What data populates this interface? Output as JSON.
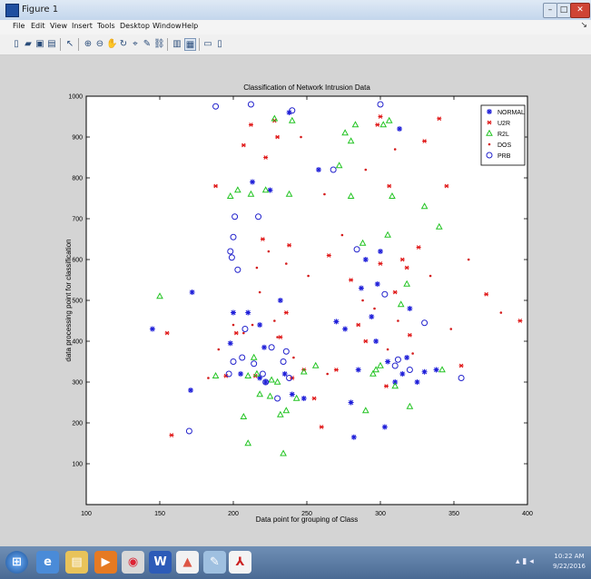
{
  "window": {
    "title": "Figure 1"
  },
  "menu": [
    "File",
    "Edit",
    "View",
    "Insert",
    "Tools",
    "Desktop",
    "Window",
    "Help"
  ],
  "toolbar_icons": [
    "new-figure-icon",
    "open-icon",
    "save-icon",
    "print-icon",
    "pointer-icon",
    "zoom-in-icon",
    "zoom-out-icon",
    "pan-icon",
    "rotate-icon",
    "data-cursor-icon",
    "brush-icon",
    "link-icon",
    "colorbar-icon",
    "legend-icon",
    "hide-tools-icon",
    "show-tools-icon"
  ],
  "chart_data": {
    "type": "scatter",
    "title": "Classification of Network Intrusion Data",
    "xlabel": "Data point for grouping of Class",
    "ylabel": "data processing point for classification",
    "xlim": [
      100,
      400
    ],
    "ylim": [
      0,
      1000
    ],
    "xticks": [
      100,
      150,
      200,
      250,
      300,
      350,
      400
    ],
    "yticks": [
      100,
      200,
      300,
      400,
      500,
      600,
      700,
      800,
      900,
      1000
    ],
    "grid": false,
    "legend": "top-right",
    "series": [
      {
        "name": "NORMAL",
        "marker": "star",
        "color": "#1f1fd9",
        "points": [
          [
            145,
            430
          ],
          [
            172,
            520
          ],
          [
            171,
            280
          ],
          [
            198,
            395
          ],
          [
            200,
            470
          ],
          [
            205,
            320
          ],
          [
            210,
            470
          ],
          [
            213,
            790
          ],
          [
            218,
            440
          ],
          [
            221,
            385
          ],
          [
            225,
            770
          ],
          [
            232,
            500
          ],
          [
            235,
            320
          ],
          [
            238,
            960
          ],
          [
            240,
            270
          ],
          [
            248,
            260
          ],
          [
            258,
            820
          ],
          [
            270,
            448
          ],
          [
            282,
            165
          ],
          [
            285,
            330
          ],
          [
            287,
            530
          ],
          [
            290,
            600
          ],
          [
            294,
            460
          ],
          [
            297,
            400
          ],
          [
            298,
            540
          ],
          [
            300,
            620
          ],
          [
            303,
            190
          ],
          [
            310,
            300
          ],
          [
            313,
            920
          ],
          [
            315,
            320
          ],
          [
            320,
            480
          ],
          [
            325,
            300
          ],
          [
            330,
            325
          ],
          [
            338,
            330
          ],
          [
            218,
            310
          ],
          [
            222,
            300
          ],
          [
            280,
            250
          ],
          [
            276,
            430
          ],
          [
            305,
            350
          ],
          [
            318,
            360
          ]
        ]
      },
      {
        "name": "U2R",
        "marker": "asterisk",
        "color": "#e01818",
        "points": [
          [
            155,
            420
          ],
          [
            158,
            170
          ],
          [
            188,
            780
          ],
          [
            195,
            315
          ],
          [
            202,
            420
          ],
          [
            207,
            880
          ],
          [
            212,
            930
          ],
          [
            215,
            315
          ],
          [
            220,
            650
          ],
          [
            222,
            850
          ],
          [
            228,
            940
          ],
          [
            230,
            900
          ],
          [
            232,
            410
          ],
          [
            236,
            470
          ],
          [
            238,
            635
          ],
          [
            240,
            310
          ],
          [
            255,
            260
          ],
          [
            265,
            610
          ],
          [
            270,
            330
          ],
          [
            280,
            550
          ],
          [
            285,
            440
          ],
          [
            290,
            400
          ],
          [
            298,
            930
          ],
          [
            300,
            590
          ],
          [
            304,
            290
          ],
          [
            306,
            780
          ],
          [
            310,
            520
          ],
          [
            315,
            600
          ],
          [
            318,
            580
          ],
          [
            320,
            415
          ],
          [
            326,
            630
          ],
          [
            330,
            890
          ],
          [
            340,
            945
          ],
          [
            345,
            780
          ],
          [
            355,
            340
          ],
          [
            372,
            515
          ],
          [
            395,
            450
          ],
          [
            260,
            190
          ],
          [
            248,
            330
          ],
          [
            300,
            950
          ]
        ]
      },
      {
        "name": "R2L",
        "marker": "triangle",
        "color": "#22c422",
        "points": [
          [
            150,
            510
          ],
          [
            188,
            315
          ],
          [
            198,
            755
          ],
          [
            203,
            770
          ],
          [
            207,
            215
          ],
          [
            210,
            150
          ],
          [
            212,
            760
          ],
          [
            214,
            360
          ],
          [
            216,
            320
          ],
          [
            218,
            270
          ],
          [
            222,
            770
          ],
          [
            225,
            265
          ],
          [
            228,
            945
          ],
          [
            230,
            300
          ],
          [
            232,
            220
          ],
          [
            234,
            125
          ],
          [
            236,
            230
          ],
          [
            238,
            760
          ],
          [
            240,
            940
          ],
          [
            243,
            260
          ],
          [
            248,
            325
          ],
          [
            256,
            340
          ],
          [
            272,
            830
          ],
          [
            276,
            910
          ],
          [
            280,
            755
          ],
          [
            283,
            930
          ],
          [
            288,
            640
          ],
          [
            290,
            230
          ],
          [
            295,
            320
          ],
          [
            297,
            330
          ],
          [
            302,
            930
          ],
          [
            305,
            660
          ],
          [
            306,
            940
          ],
          [
            308,
            755
          ],
          [
            310,
            290
          ],
          [
            314,
            490
          ],
          [
            318,
            540
          ],
          [
            320,
            240
          ],
          [
            330,
            730
          ],
          [
            340,
            680
          ],
          [
            342,
            330
          ],
          [
            210,
            315
          ],
          [
            226,
            305
          ],
          [
            300,
            340
          ],
          [
            280,
            890
          ]
        ]
      },
      {
        "name": "DOS",
        "marker": "dot",
        "color": "#d41a1a",
        "points": [
          [
            183,
            310
          ],
          [
            190,
            380
          ],
          [
            200,
            440
          ],
          [
            207,
            420
          ],
          [
            213,
            440
          ],
          [
            218,
            520
          ],
          [
            224,
            620
          ],
          [
            228,
            450
          ],
          [
            236,
            590
          ],
          [
            241,
            360
          ],
          [
            251,
            560
          ],
          [
            264,
            320
          ],
          [
            274,
            660
          ],
          [
            288,
            500
          ],
          [
            296,
            480
          ],
          [
            305,
            380
          ],
          [
            312,
            450
          ],
          [
            322,
            370
          ],
          [
            334,
            560
          ],
          [
            348,
            430
          ],
          [
            360,
            600
          ],
          [
            382,
            470
          ],
          [
            262,
            760
          ],
          [
            290,
            820
          ],
          [
            310,
            870
          ],
          [
            246,
            900
          ],
          [
            216,
            580
          ],
          [
            230,
            410
          ]
        ]
      },
      {
        "name": "PRB",
        "marker": "circle",
        "color": "#2222cc",
        "points": [
          [
            170,
            180
          ],
          [
            188,
            975
          ],
          [
            197,
            320
          ],
          [
            198,
            620
          ],
          [
            199,
            605
          ],
          [
            200,
            655
          ],
          [
            201,
            705
          ],
          [
            203,
            575
          ],
          [
            206,
            360
          ],
          [
            208,
            430
          ],
          [
            212,
            980
          ],
          [
            214,
            345
          ],
          [
            217,
            705
          ],
          [
            220,
            320
          ],
          [
            226,
            385
          ],
          [
            230,
            260
          ],
          [
            234,
            350
          ],
          [
            236,
            375
          ],
          [
            238,
            310
          ],
          [
            240,
            965
          ],
          [
            268,
            820
          ],
          [
            284,
            625
          ],
          [
            300,
            980
          ],
          [
            303,
            515
          ],
          [
            310,
            340
          ],
          [
            312,
            355
          ],
          [
            320,
            330
          ],
          [
            330,
            445
          ],
          [
            355,
            310
          ],
          [
            200,
            350
          ],
          [
            222,
            300
          ]
        ]
      }
    ]
  },
  "taskbar": {
    "apps": [
      "start-orb",
      "ie-icon",
      "explorer-icon",
      "media-icon",
      "chrome-icon",
      "word-icon",
      "matlab-icon",
      "paint-icon",
      "pdf-icon"
    ],
    "time": "10:22 AM",
    "date": "9/22/2016"
  }
}
